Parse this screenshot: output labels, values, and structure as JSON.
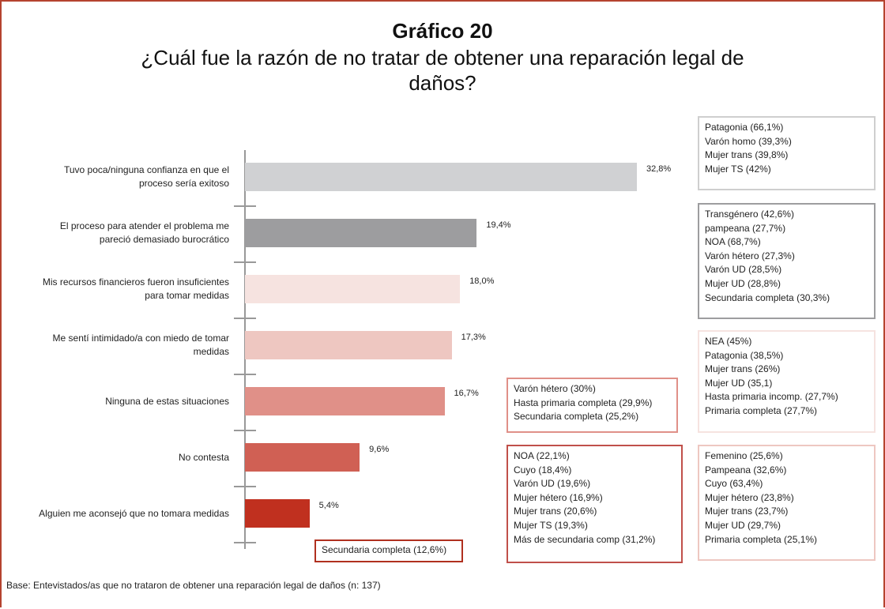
{
  "chart_data": {
    "type": "bar",
    "orientation": "horizontal",
    "title": "Gráfico 20",
    "subtitle": "¿Cuál fue la razón de no tratar de obtener una reparación legal de daños?",
    "categories": [
      "Tuvo poca/ninguna confianza en que el proceso sería exitoso",
      "El proceso para atender el problema me pareció demasiado burocrático",
      "Mis recursos financieros fueron insuficientes para tomar medidas",
      "Me sentí intimidado/a con miedo de tomar medidas",
      "Ninguna de estas situaciones",
      "No contesta",
      "Alguien me aconsejó que no tomara medidas"
    ],
    "values": [
      32.8,
      19.4,
      18.0,
      17.3,
      16.7,
      9.6,
      5.4
    ],
    "value_labels": [
      "32,8%",
      "19,4%",
      "18,0%",
      "17,3%",
      "16,7%",
      "9,6%",
      "5,4%"
    ],
    "colors": [
      "#d0d1d3",
      "#9d9d9f",
      "#f6e3e0",
      "#eec7c1",
      "#e09088",
      "#d06054",
      "#c0301f"
    ],
    "annotations": [
      {
        "color": "#cfcfcf",
        "lines": [
          "Patagonia (66,1%)",
          "Varón homo (39,3%)",
          "Mujer trans (39,8%)",
          "Mujer TS (42%)"
        ]
      },
      {
        "color": "#9d9d9f",
        "lines": [
          "Transgénero (42,6%)",
          "pampeana (27,7%)",
          "NOA (68,7%)",
          "Varón hétero (27,3%)",
          "Varón UD (28,5%)",
          "Mujer UD (28,8%)",
          "Secundaria completa (30,3%)"
        ]
      },
      {
        "color": "#f6e3e0",
        "lines": [
          "NEA (45%)",
          "Patagonia (38,5%)",
          "Mujer trans (26%)",
          "Mujer UD (35,1)",
          "Hasta primaria incomp. (27,7%)",
          "Primaria completa (27,7%)"
        ]
      },
      {
        "color": "#eec7c1",
        "lines": [
          "Femenino (25,6%)",
          "Pampeana (32,6%)",
          "Cuyo (63,4%)",
          "Mujer hétero (23,8%)",
          "Mujer trans (23,7%)",
          "Mujer UD (29,7%)",
          "Primaria completa (25,1%)"
        ]
      },
      {
        "color": "#e09088",
        "lines": [
          "Varón hétero (30%)",
          "Hasta primaria completa (29,9%)",
          "Secundaria completa (25,2%)"
        ]
      },
      {
        "color": "#c0504a",
        "lines": [
          "NOA (22,1%)",
          "Cuyo (18,4%)",
          "Varón UD (19,6%)",
          "Mujer hétero (16,9%)",
          "Mujer trans (20,6%)",
          "Mujer TS (19,3%)",
          "Más de secundaria comp (31,2%)"
        ]
      },
      {
        "color": "#b0301f",
        "lines": [
          "Secundaria completa (12,6%)"
        ]
      }
    ],
    "footer": "Base: Entevistados/as que no trataron de obtener una reparación legal de daños (n: 137)"
  }
}
